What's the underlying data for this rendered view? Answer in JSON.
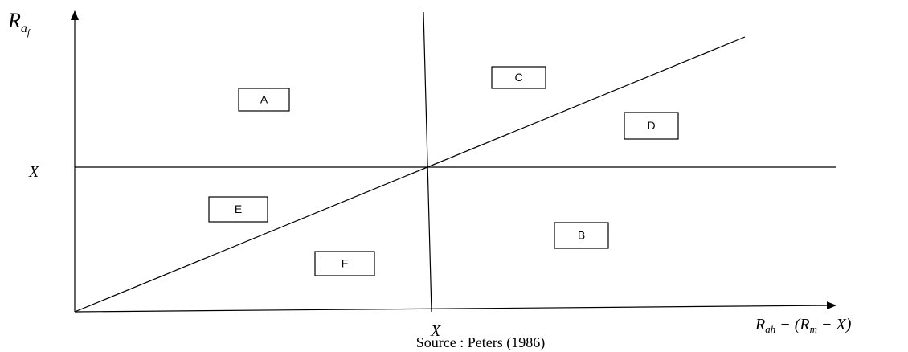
{
  "y_axis_label": {
    "main": "R",
    "sub": "a",
    "subsub": "f"
  },
  "y_mark_label": "X",
  "x_mark_label": "X",
  "x_axis_label": {
    "parts": [
      "R",
      "ah",
      " − (R",
      "m",
      " − X)"
    ]
  },
  "regions": [
    {
      "label": "A"
    },
    {
      "label": "C"
    },
    {
      "label": "D"
    },
    {
      "label": "E"
    },
    {
      "label": "B"
    },
    {
      "label": "F"
    }
  ],
  "source": "Source : Peters (1986)"
}
